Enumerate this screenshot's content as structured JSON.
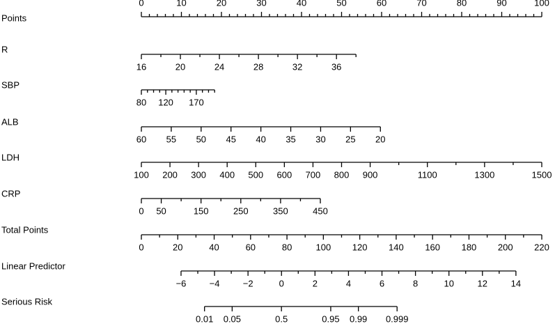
{
  "chart_data": {
    "type": "nomogram",
    "rows": [
      {
        "name": "Points",
        "ref": 0,
        "lim": [
          0,
          100
        ],
        "at": [
          0,
          100
        ],
        "labels": "above",
        "ticks": [
          0,
          10,
          20,
          30,
          40,
          50,
          60,
          70,
          80,
          90,
          100
        ],
        "minor_ticks": [
          2,
          4,
          6,
          8,
          12,
          14,
          16,
          18,
          22,
          24,
          26,
          28,
          32,
          34,
          36,
          38,
          42,
          44,
          46,
          48,
          52,
          54,
          56,
          58,
          62,
          64,
          66,
          68,
          72,
          74,
          76,
          78,
          82,
          84,
          86,
          88,
          92,
          94,
          96,
          98
        ]
      },
      {
        "name": "R",
        "ref": 0,
        "lim": [
          16,
          38
        ],
        "at": [
          0,
          53.6
        ],
        "labels": "below",
        "ticks": [
          16,
          20,
          24,
          28,
          32,
          36
        ],
        "minor_ticks": [
          18,
          22,
          26,
          30,
          34,
          38
        ]
      },
      {
        "name": "SBP",
        "ref": 0,
        "lim": [
          80,
          200
        ],
        "at": [
          0,
          18.3
        ],
        "labels": "below",
        "ticks": [
          80,
          120,
          170
        ],
        "minor_ticks": [
          90,
          100,
          110,
          130,
          140,
          150,
          160,
          180,
          190,
          200
        ]
      },
      {
        "name": "ALB",
        "ref": 0,
        "lim": [
          60,
          20
        ],
        "at": [
          0,
          59.7
        ],
        "labels": "below",
        "ticks": [
          60,
          55,
          50,
          45,
          40,
          35,
          30,
          25,
          20
        ],
        "minor_ticks": []
      },
      {
        "name": "LDH",
        "ref": 0,
        "lim": [
          100,
          1500
        ],
        "at": [
          0,
          100
        ],
        "labels": "below",
        "ticks": [
          100,
          200,
          300,
          400,
          500,
          600,
          700,
          800,
          900,
          1100,
          1300,
          1500
        ],
        "minor_ticks": [
          1000,
          1200,
          1400
        ]
      },
      {
        "name": "CRP",
        "ref": 0,
        "lim": [
          0,
          450
        ],
        "at": [
          0,
          44.7
        ],
        "labels": "below",
        "ticks": [
          0,
          50,
          150,
          250,
          350,
          450
        ],
        "minor_ticks": [
          100,
          200,
          300,
          400
        ]
      },
      {
        "name": "Total Points",
        "ref": 6,
        "lim": [
          0,
          220
        ],
        "at": [
          0,
          220
        ],
        "labels": "below",
        "ticks": [
          0,
          20,
          40,
          60,
          80,
          100,
          120,
          140,
          160,
          180,
          200,
          220
        ],
        "minor_ticks": [
          10,
          30,
          50,
          70,
          90,
          110,
          130,
          150,
          170,
          190,
          210
        ]
      },
      {
        "name": "Linear Predictor",
        "ref": 6,
        "lim": [
          -6,
          14
        ],
        "at": [
          21.8,
          205.8
        ],
        "labels": "below",
        "ticks": [
          {
            "value": -6,
            "label": "−6"
          },
          {
            "value": -4,
            "label": "−4"
          },
          {
            "value": -2,
            "label": "−2"
          },
          0,
          2,
          4,
          6,
          8,
          10,
          12,
          14
        ],
        "minor_ticks": [
          -5,
          -3,
          -1,
          1,
          3,
          5,
          7,
          9,
          11,
          13
        ]
      },
      {
        "name": "Serious Risk",
        "ref": 6,
        "scale": "logit",
        "lim": [
          0.01,
          0.999
        ],
        "at": [
          34.7,
          140.5
        ],
        "labels": "below",
        "ticks": [
          0.01,
          0.05,
          0.5,
          0.95,
          0.99,
          0.999
        ],
        "minor_ticks": []
      }
    ]
  }
}
